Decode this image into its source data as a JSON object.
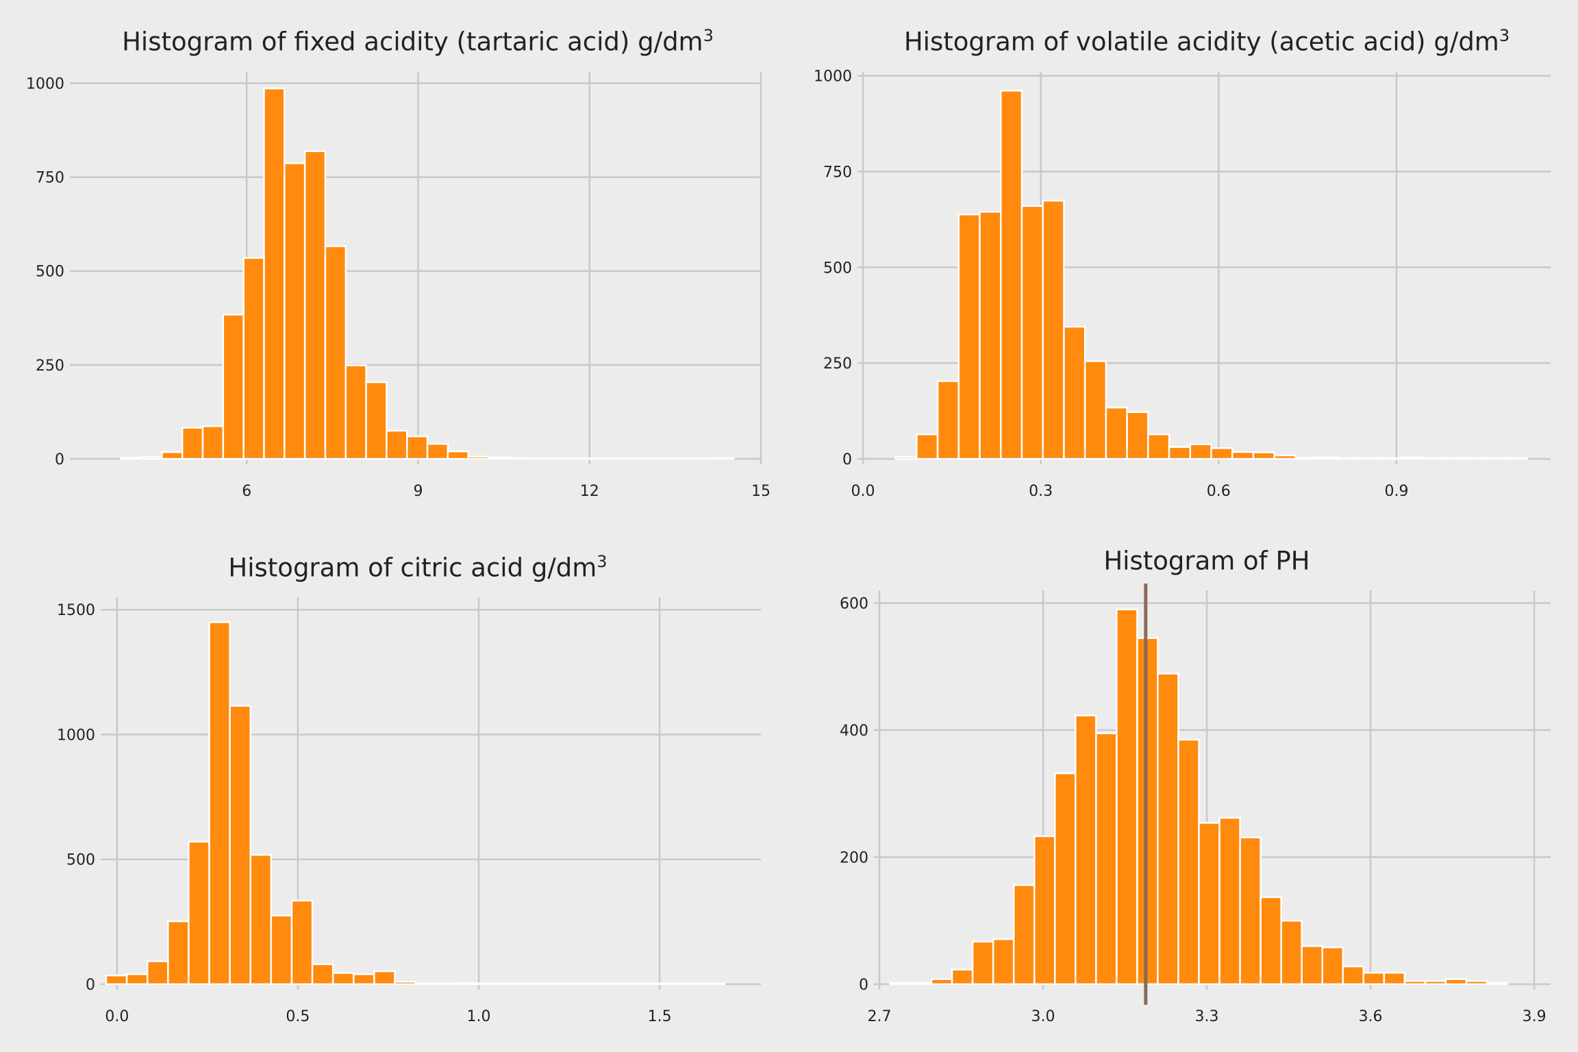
{
  "chart_data": [
    {
      "type": "bar",
      "title": "Histogram of fixed acidity (tartaric acid) g/dm",
      "title_sup": "3",
      "bin_start": 3.8,
      "bin_width": 0.3575,
      "values": [
        3,
        5,
        18,
        83,
        87,
        384,
        535,
        986,
        787,
        819,
        566,
        249,
        204,
        75,
        60,
        40,
        20,
        6,
        4,
        2,
        1,
        1,
        1,
        1,
        1,
        1,
        1,
        1,
        1,
        2
      ],
      "xlim": [
        3.0,
        15.0
      ],
      "ylim": [
        0,
        1030
      ],
      "xticks": [
        6,
        9,
        12,
        15
      ],
      "xtick_labels": [
        "6",
        "9",
        "12",
        "15"
      ],
      "yticks": [
        0,
        250,
        500,
        750,
        1000
      ],
      "ytick_labels": [
        "0",
        "250",
        "500",
        "750",
        "1000"
      ],
      "grid": true
    },
    {
      "type": "bar",
      "title": "Histogram of volatile acidity (acetic acid) g/dm",
      "title_sup": "3",
      "bin_start": 0.055,
      "bin_width": 0.0355,
      "values": [
        5,
        64,
        203,
        638,
        645,
        961,
        660,
        674,
        345,
        255,
        134,
        122,
        64,
        31,
        38,
        28,
        18,
        17,
        9,
        3,
        4,
        2,
        2,
        2,
        4,
        2,
        2,
        2,
        2,
        2
      ],
      "xlim": [
        0.0,
        1.16
      ],
      "ylim": [
        0,
        1010
      ],
      "xticks": [
        0.0,
        0.3,
        0.6,
        0.9
      ],
      "xtick_labels": [
        "0.0",
        "0.3",
        "0.6",
        "0.9"
      ],
      "yticks": [
        0,
        250,
        500,
        750,
        1000
      ],
      "ytick_labels": [
        "0",
        "250",
        "500",
        "750",
        "1000"
      ],
      "grid": true
    },
    {
      "type": "bar",
      "title": "Histogram of citric acid g/dm",
      "title_sup": "3",
      "bin_start": -0.03,
      "bin_width": 0.057,
      "values": [
        35,
        40,
        92,
        252,
        571,
        1450,
        1115,
        518,
        275,
        335,
        80,
        45,
        40,
        52,
        10,
        3,
        3,
        5,
        3,
        3,
        3,
        3,
        3,
        3,
        3,
        3,
        3,
        3,
        3,
        3
      ],
      "xlim": [
        -0.03,
        1.78
      ],
      "ylim": [
        0,
        1550
      ],
      "xticks": [
        0.0,
        0.5,
        1.0,
        1.5
      ],
      "xtick_labels": [
        "0.0",
        "0.5",
        "1.0",
        "1.5"
      ],
      "yticks": [
        0,
        500,
        1000,
        1500
      ],
      "ytick_labels": [
        "0",
        "500",
        "1000",
        "1500"
      ],
      "grid": true
    },
    {
      "type": "bar",
      "title": "Histogram of PH",
      "title_sup": "",
      "bin_start": 2.72,
      "bin_width": 0.0377,
      "values": [
        2,
        2,
        8,
        23,
        67,
        71,
        156,
        233,
        332,
        423,
        395,
        590,
        545,
        489,
        385,
        254,
        262,
        231,
        137,
        100,
        60,
        58,
        28,
        18,
        18,
        5,
        5,
        8,
        5,
        2
      ],
      "xlim": [
        2.7,
        3.93
      ],
      "ylim": [
        0,
        620
      ],
      "xticks": [
        2.7,
        3.0,
        3.3,
        3.6,
        3.9
      ],
      "xtick_labels": [
        "2.7",
        "3.0",
        "3.3",
        "3.6",
        "3.9"
      ],
      "yticks": [
        0,
        200,
        400,
        600
      ],
      "ytick_labels": [
        "0",
        "200",
        "400",
        "600"
      ],
      "grid": true,
      "vline": 3.188
    }
  ],
  "colors": {
    "bar": "#ff8a0e",
    "bar_edge": "#ffffff",
    "grid": "#c8c8c8",
    "background": "#ececec",
    "vline": "#8a6a5a"
  }
}
